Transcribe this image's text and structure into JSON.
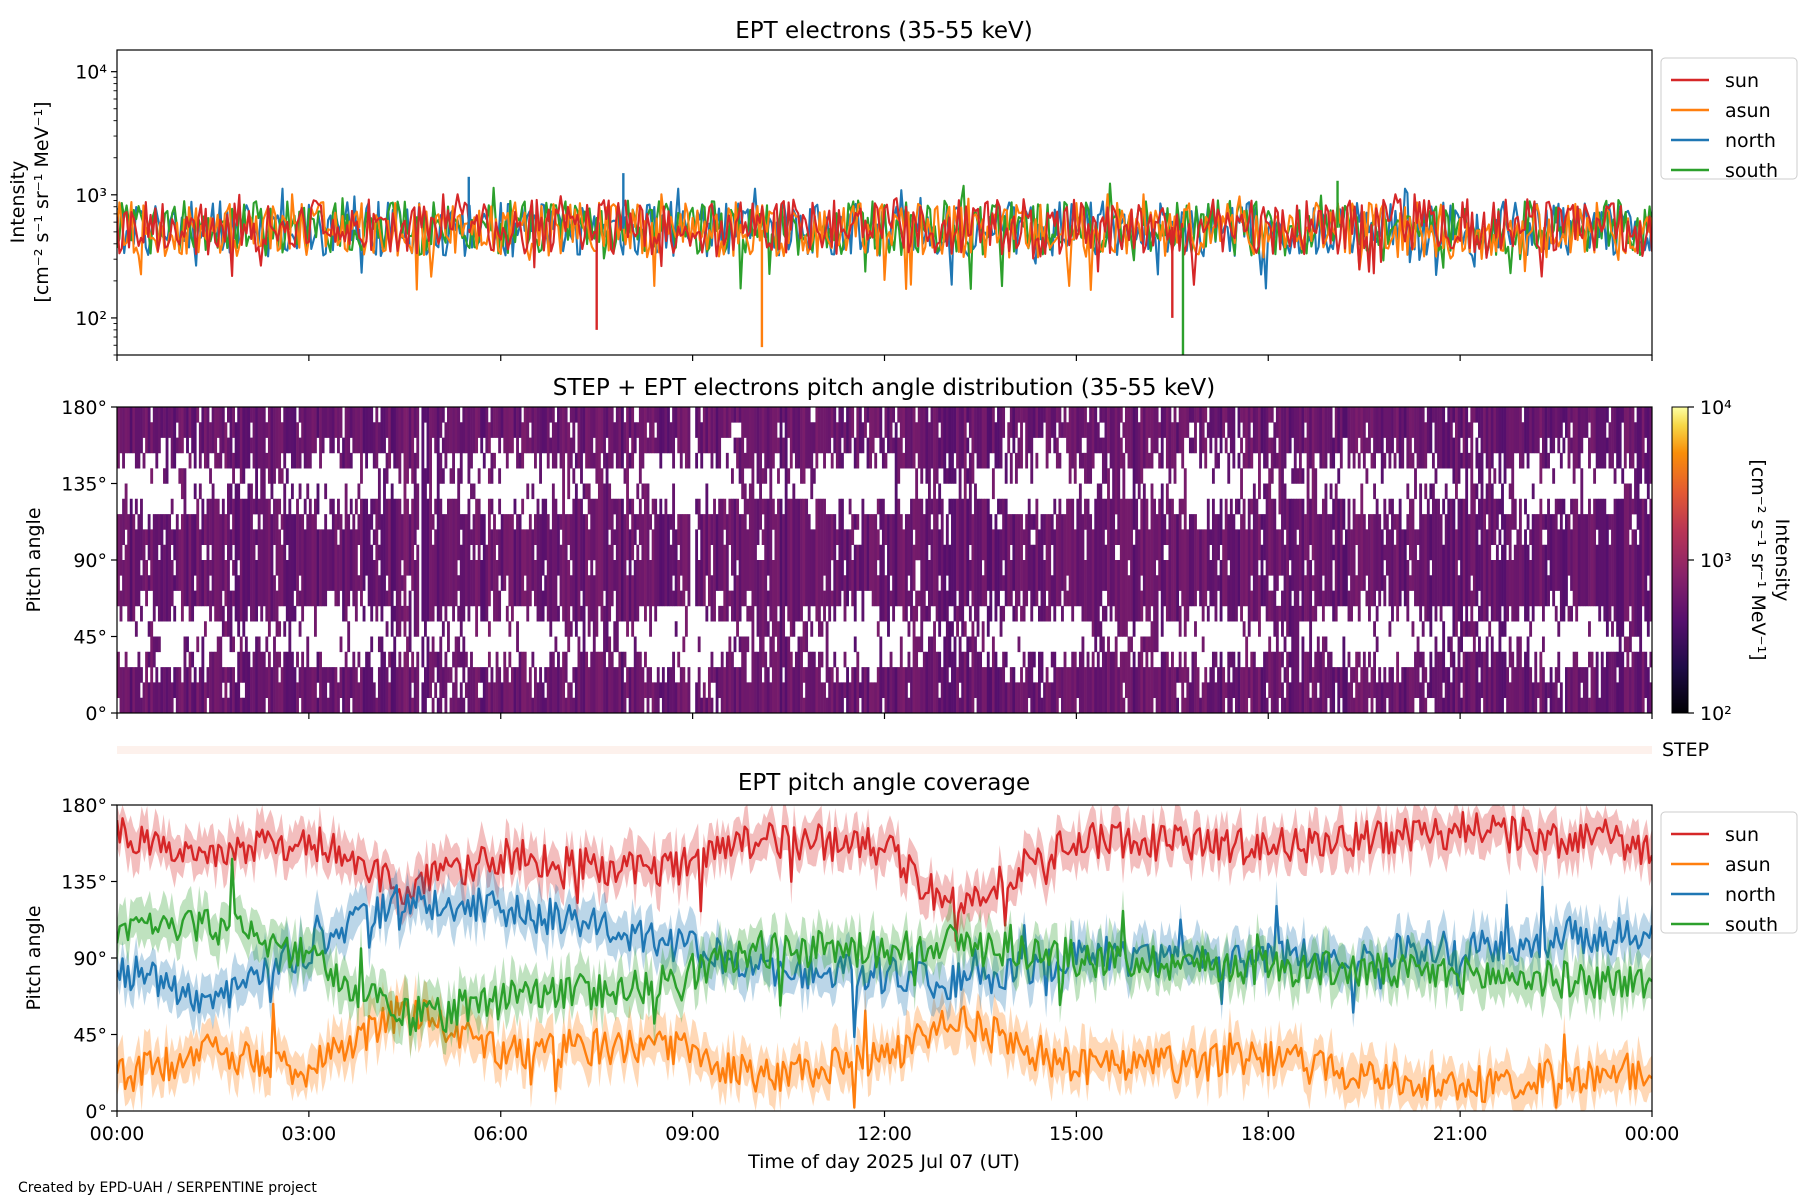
{
  "credit": "Created by EPD-UAH / SERPENTINE project",
  "chart_data": [
    {
      "type": "line",
      "title": "EPT electrons (35-55 keV)",
      "ylabel_line1": "Intensity",
      "ylabel_line2": "[cm⁻² s⁻¹ sr⁻¹ MeV⁻¹]",
      "yscale": "log",
      "ylim": [
        50,
        15000
      ],
      "yticks": [
        {
          "value": 100,
          "label": "10²"
        },
        {
          "value": 1000,
          "label": "10³"
        },
        {
          "value": 10000,
          "label": "10⁴"
        }
      ],
      "xlim_hours": [
        0,
        24
      ],
      "legend_position": "outside-right",
      "colors": {
        "sun": "#d62728",
        "asun": "#ff7f0e",
        "north": "#1f77b4",
        "south": "#2ca02c"
      },
      "series": [
        {
          "name": "sun",
          "color": "#d62728",
          "typical_value": 550,
          "typical_range": [
            300,
            900
          ]
        },
        {
          "name": "asun",
          "color": "#ff7f0e",
          "typical_value": 520,
          "typical_range": [
            250,
            900
          ]
        },
        {
          "name": "north",
          "color": "#1f77b4",
          "typical_value": 530,
          "typical_range": [
            200,
            1000
          ]
        },
        {
          "name": "south",
          "color": "#2ca02c",
          "typical_value": 540,
          "typical_range": [
            200,
            1100
          ]
        }
      ],
      "draw_order": [
        "north",
        "south",
        "asun",
        "sun"
      ],
      "notable_points": [
        {
          "series": "north",
          "time": "05:30",
          "value": 1400
        },
        {
          "series": "north",
          "time": "07:55",
          "value": 1500
        },
        {
          "series": "south",
          "time": "19:05",
          "value": 1300
        },
        {
          "series": "sun",
          "time": "07:30",
          "value": 80
        },
        {
          "series": "asun",
          "time": "10:05",
          "value": 58
        },
        {
          "series": "south",
          "time": "16:40",
          "value": 50
        },
        {
          "series": "sun",
          "time": "16:30",
          "value": 100
        }
      ]
    },
    {
      "type": "heatmap",
      "title": "STEP + EPT electrons pitch angle distribution (35-55 keV)",
      "ylabel": "Pitch angle",
      "ylim": [
        0,
        180
      ],
      "yticks": [
        "0°",
        "45°",
        "90°",
        "135°",
        "180°"
      ],
      "xlim_hours": [
        0,
        24
      ],
      "colorbar": {
        "scale": "log",
        "range": [
          100,
          10000
        ],
        "ticks": [
          {
            "value": 100,
            "label": "10²"
          },
          {
            "value": 1000,
            "label": "10³"
          },
          {
            "value": 10000,
            "label": "10⁴"
          }
        ],
        "label_line1": "Intensity",
        "label_line2": "[cm⁻² s⁻¹ sr⁻¹ MeV⁻¹]",
        "colormap": "inferno"
      },
      "typical_intensity": 500,
      "data_gaps": [
        "04:45",
        "09:00"
      ],
      "step_strip_label": "STEP"
    },
    {
      "type": "line",
      "title": "EPT pitch angle coverage",
      "ylabel": "Pitch angle",
      "ylim": [
        0,
        180
      ],
      "yticks": [
        "0°",
        "45°",
        "90°",
        "135°",
        "180°"
      ],
      "xlabel": "Time of day 2025 Jul 07 (UT)",
      "xlim_hours": [
        0,
        24
      ],
      "xticks": [
        "00:00",
        "03:00",
        "06:00",
        "09:00",
        "12:00",
        "15:00",
        "18:00",
        "21:00",
        "00:00"
      ],
      "legend_position": "outside-right",
      "shaded_band": "pitch-angle spread around each series",
      "series": [
        {
          "name": "sun",
          "color": "#d62728",
          "keypoints": [
            [
              0,
              165
            ],
            [
              1.5,
              150
            ],
            [
              3,
              160
            ],
            [
              4.5,
              130
            ],
            [
              6,
              150
            ],
            [
              8.5,
              140
            ],
            [
              10,
              160
            ],
            [
              12,
              155
            ],
            [
              13,
              120
            ],
            [
              15,
              160
            ],
            [
              18,
              155
            ],
            [
              21,
              165
            ],
            [
              24,
              155
            ]
          ]
        },
        {
          "name": "asun",
          "color": "#ff7f0e",
          "keypoints": [
            [
              0,
              20
            ],
            [
              1.5,
              35
            ],
            [
              3,
              25
            ],
            [
              4.5,
              60
            ],
            [
              6,
              35
            ],
            [
              8.5,
              40
            ],
            [
              10,
              20
            ],
            [
              12,
              30
            ],
            [
              13,
              55
            ],
            [
              15,
              25
            ],
            [
              18,
              30
            ],
            [
              21,
              15
            ],
            [
              24,
              25
            ]
          ]
        },
        {
          "name": "north",
          "color": "#1f77b4",
          "keypoints": [
            [
              0,
              85
            ],
            [
              1.5,
              65
            ],
            [
              3,
              95
            ],
            [
              4.5,
              125
            ],
            [
              6,
              120
            ],
            [
              8.5,
              100
            ],
            [
              10,
              85
            ],
            [
              12,
              80
            ],
            [
              13,
              75
            ],
            [
              15,
              90
            ],
            [
              18,
              90
            ],
            [
              21,
              95
            ],
            [
              24,
              105
            ]
          ]
        },
        {
          "name": "south",
          "color": "#2ca02c",
          "keypoints": [
            [
              0,
              105
            ],
            [
              1.5,
              110
            ],
            [
              3,
              90
            ],
            [
              4.5,
              55
            ],
            [
              6,
              65
            ],
            [
              8.5,
              75
            ],
            [
              10,
              95
            ],
            [
              12,
              95
            ],
            [
              13,
              100
            ],
            [
              15,
              90
            ],
            [
              18,
              85
            ],
            [
              21,
              80
            ],
            [
              24,
              75
            ]
          ]
        }
      ]
    }
  ]
}
